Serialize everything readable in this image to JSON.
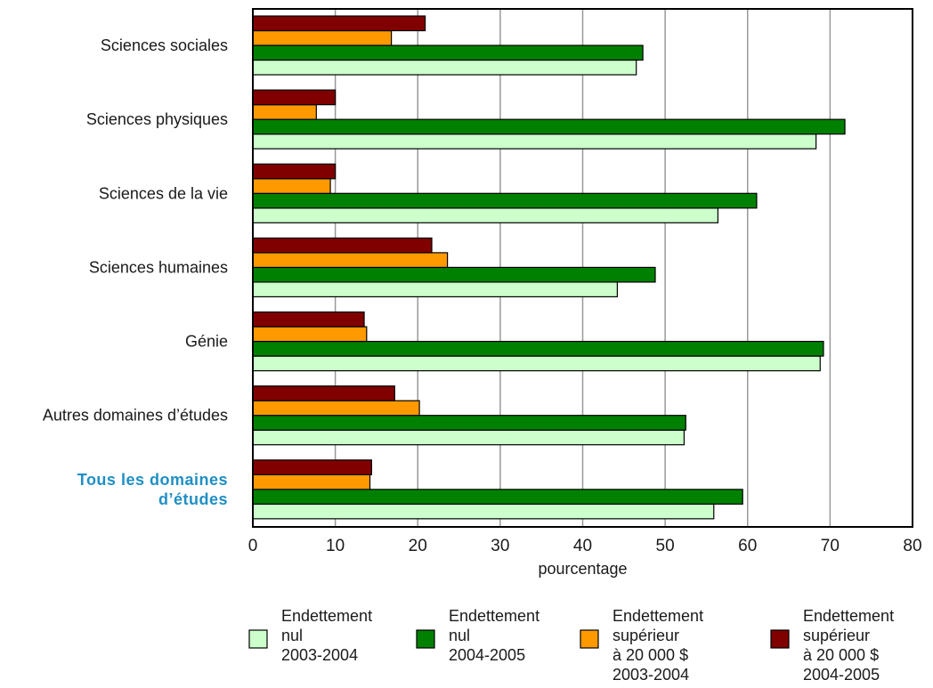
{
  "chart_data": {
    "type": "bar",
    "orientation": "horizontal",
    "categories": [
      [
        "Sciences sociales"
      ],
      [
        "Sciences physiques"
      ],
      [
        "Sciences de la vie"
      ],
      [
        "Sciences humaines"
      ],
      [
        "Génie"
      ],
      [
        "Autres domaines d’études"
      ],
      [
        "Tous les domaines",
        "d’études"
      ]
    ],
    "highlight_category_index": 6,
    "series": [
      {
        "values": [
          46.5,
          68.3,
          56.4,
          44.2,
          68.8,
          52.3,
          55.9
        ],
        "color": "#ccffcc"
      },
      {
        "values": [
          47.3,
          71.8,
          61.1,
          48.8,
          69.2,
          52.5,
          59.4
        ],
        "color": "#008000"
      },
      {
        "values": [
          16.8,
          7.7,
          9.4,
          23.6,
          13.8,
          20.2,
          14.2
        ],
        "color": "#ff9900"
      },
      {
        "values": [
          20.9,
          10.0,
          10.0,
          21.7,
          13.5,
          17.2,
          14.4
        ],
        "color": "#800000"
      }
    ],
    "xlim": [
      0,
      80
    ],
    "xticks": [
      0,
      10,
      20,
      30,
      40,
      50,
      60,
      70,
      80
    ],
    "xlabel": "pourcentage",
    "ylabel": "",
    "grid": true,
    "legend": {
      "placement": "bottom",
      "entries": [
        {
          "lines": [
            "Endettement",
            "nul",
            "2003-2004"
          ],
          "color": "#ccffcc"
        },
        {
          "lines": [
            "Endettement",
            "nul",
            "2004-2005"
          ],
          "color": "#008000"
        },
        {
          "lines": [
            "Endettement",
            "supérieur",
            "à 20 000 $",
            "2003-2004"
          ],
          "color": "#ff9900"
        },
        {
          "lines": [
            "Endettement",
            "supérieur",
            "à 20 000 $",
            "2004-2005"
          ],
          "color": "#800000"
        }
      ]
    },
    "colors": {
      "grid": "#999999",
      "highlight_label": "#1f8fc4"
    }
  }
}
